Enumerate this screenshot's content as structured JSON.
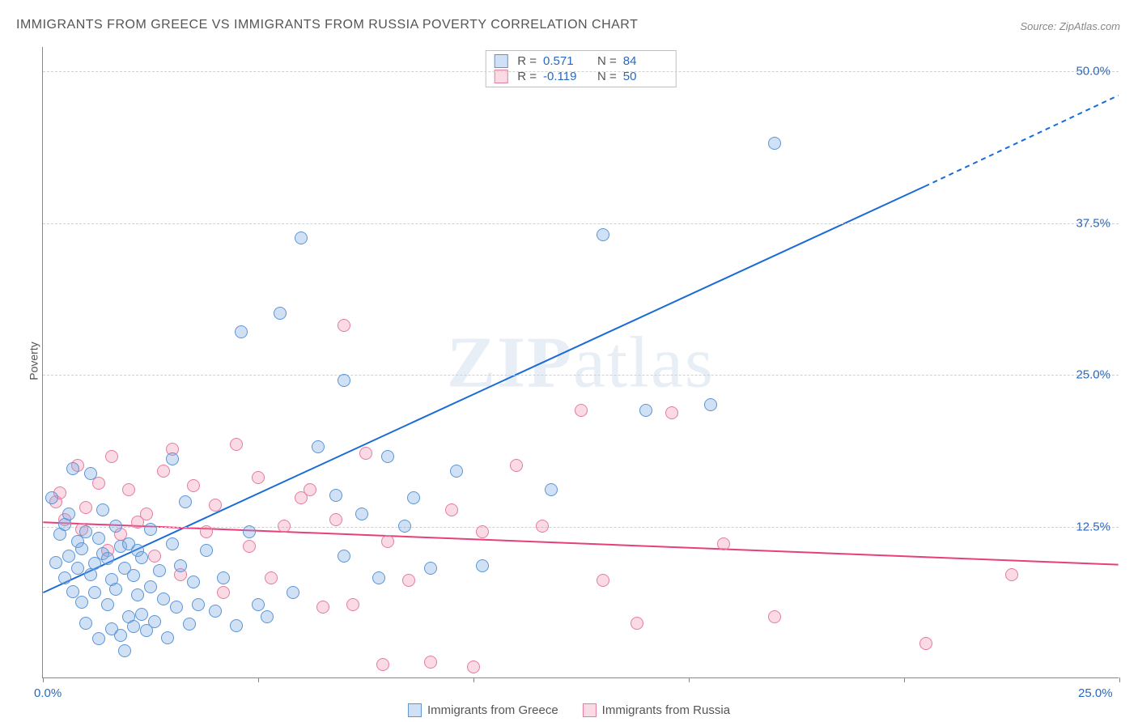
{
  "title": "IMMIGRANTS FROM GREECE VS IMMIGRANTS FROM RUSSIA POVERTY CORRELATION CHART",
  "source": "Source: ZipAtlas.com",
  "ylabel": "Poverty",
  "watermark_bold": "ZIP",
  "watermark_rest": "atlas",
  "chart": {
    "type": "scatter-correlation",
    "xlim": [
      0,
      25
    ],
    "ylim": [
      0,
      52
    ],
    "xtick_positions": [
      0,
      5,
      10,
      15,
      20,
      25
    ],
    "xtick_labels": [
      "0.0%",
      "",
      "",
      "",
      "",
      "25.0%"
    ],
    "ytick_positions": [
      12.5,
      25.0,
      37.5,
      50.0
    ],
    "ytick_labels": [
      "12.5%",
      "25.0%",
      "37.5%",
      "50.0%"
    ],
    "grid_color": "#d0d0d0",
    "background": "#ffffff",
    "axis_color": "#888888",
    "tick_label_color": "#2968c0",
    "label_color": "#555555",
    "title_fontsize": 16,
    "label_fontsize": 14,
    "tick_fontsize": 15
  },
  "series": {
    "greece": {
      "label": "Immigrants from Greece",
      "color_fill": "rgba(120,170,230,0.35)",
      "color_stroke": "#5b95d6",
      "line_color": "#1a6bd6",
      "line_width": 2,
      "marker_radius": 8,
      "R": "0.571",
      "N": "84",
      "trend": {
        "x1": 0,
        "y1": 7.0,
        "x2": 20.5,
        "y2": 40.5,
        "x2_dash": 25,
        "y2_dash": 48.0
      },
      "points": [
        [
          0.2,
          14.8
        ],
        [
          0.3,
          9.5
        ],
        [
          0.4,
          11.8
        ],
        [
          0.5,
          12.6
        ],
        [
          0.5,
          8.2
        ],
        [
          0.6,
          10.0
        ],
        [
          0.6,
          13.5
        ],
        [
          0.7,
          7.1
        ],
        [
          0.7,
          17.2
        ],
        [
          0.8,
          9.0
        ],
        [
          0.8,
          11.2
        ],
        [
          0.9,
          10.6
        ],
        [
          0.9,
          6.2
        ],
        [
          1.0,
          4.5
        ],
        [
          1.0,
          12.0
        ],
        [
          1.1,
          8.5
        ],
        [
          1.1,
          16.8
        ],
        [
          1.2,
          9.4
        ],
        [
          1.2,
          7.0
        ],
        [
          1.3,
          11.5
        ],
        [
          1.3,
          3.2
        ],
        [
          1.4,
          10.2
        ],
        [
          1.4,
          13.8
        ],
        [
          1.5,
          6.0
        ],
        [
          1.5,
          9.8
        ],
        [
          1.6,
          8.1
        ],
        [
          1.6,
          4.0
        ],
        [
          1.7,
          12.5
        ],
        [
          1.7,
          7.3
        ],
        [
          1.8,
          3.5
        ],
        [
          1.8,
          10.8
        ],
        [
          1.9,
          2.2
        ],
        [
          1.9,
          9.0
        ],
        [
          2.0,
          11.0
        ],
        [
          2.0,
          5.0
        ],
        [
          2.1,
          8.4
        ],
        [
          2.1,
          4.2
        ],
        [
          2.2,
          10.5
        ],
        [
          2.2,
          6.8
        ],
        [
          2.3,
          5.2
        ],
        [
          2.3,
          9.9
        ],
        [
          2.4,
          3.9
        ],
        [
          2.5,
          12.2
        ],
        [
          2.5,
          7.5
        ],
        [
          2.6,
          4.6
        ],
        [
          2.7,
          8.8
        ],
        [
          2.8,
          6.5
        ],
        [
          2.9,
          3.3
        ],
        [
          3.0,
          18.0
        ],
        [
          3.0,
          11.0
        ],
        [
          3.1,
          5.8
        ],
        [
          3.2,
          9.2
        ],
        [
          3.3,
          14.5
        ],
        [
          3.4,
          4.4
        ],
        [
          3.5,
          7.9
        ],
        [
          3.6,
          6.0
        ],
        [
          3.8,
          10.5
        ],
        [
          4.0,
          5.5
        ],
        [
          4.2,
          8.2
        ],
        [
          4.5,
          4.3
        ],
        [
          4.6,
          28.5
        ],
        [
          4.8,
          12.0
        ],
        [
          5.0,
          6.0
        ],
        [
          5.2,
          5.0
        ],
        [
          5.5,
          30.0
        ],
        [
          5.8,
          7.0
        ],
        [
          6.0,
          36.2
        ],
        [
          6.4,
          19.0
        ],
        [
          6.8,
          15.0
        ],
        [
          7.0,
          10.0
        ],
        [
          7.0,
          24.5
        ],
        [
          7.4,
          13.5
        ],
        [
          7.8,
          8.2
        ],
        [
          8.0,
          18.2
        ],
        [
          8.4,
          12.5
        ],
        [
          8.6,
          14.8
        ],
        [
          9.0,
          9.0
        ],
        [
          9.6,
          17.0
        ],
        [
          10.2,
          9.2
        ],
        [
          11.8,
          15.5
        ],
        [
          17.0,
          44.0
        ],
        [
          14.0,
          22.0
        ],
        [
          15.5,
          22.5
        ],
        [
          13.0,
          36.5
        ]
      ]
    },
    "russia": {
      "label": "Immigrants from Russia",
      "color_fill": "rgba(240,140,170,0.32)",
      "color_stroke": "#e77ba0",
      "line_color": "#e73f7a",
      "line_width": 2,
      "marker_radius": 8,
      "R": "-0.119",
      "N": "50",
      "trend": {
        "x1": 0,
        "y1": 12.8,
        "x2": 25,
        "y2": 9.3
      },
      "points": [
        [
          0.3,
          14.5
        ],
        [
          0.4,
          15.2
        ],
        [
          0.5,
          13.0
        ],
        [
          0.8,
          17.5
        ],
        [
          0.9,
          12.2
        ],
        [
          1.0,
          14.0
        ],
        [
          1.3,
          16.0
        ],
        [
          1.5,
          10.5
        ],
        [
          1.6,
          18.2
        ],
        [
          1.8,
          11.8
        ],
        [
          2.0,
          15.5
        ],
        [
          2.2,
          12.8
        ],
        [
          2.4,
          13.5
        ],
        [
          2.6,
          10.0
        ],
        [
          2.8,
          17.0
        ],
        [
          3.0,
          18.8
        ],
        [
          3.2,
          8.5
        ],
        [
          3.5,
          15.8
        ],
        [
          3.8,
          12.0
        ],
        [
          4.0,
          14.2
        ],
        [
          4.2,
          7.0
        ],
        [
          4.5,
          19.2
        ],
        [
          4.8,
          10.8
        ],
        [
          5.0,
          16.5
        ],
        [
          5.3,
          8.2
        ],
        [
          5.6,
          12.5
        ],
        [
          6.0,
          14.8
        ],
        [
          6.2,
          15.5
        ],
        [
          6.5,
          5.8
        ],
        [
          6.8,
          13.0
        ],
        [
          7.0,
          29.0
        ],
        [
          7.2,
          6.0
        ],
        [
          7.5,
          18.5
        ],
        [
          7.9,
          1.1
        ],
        [
          8.0,
          11.2
        ],
        [
          8.5,
          8.0
        ],
        [
          9.0,
          1.3
        ],
        [
          9.5,
          13.8
        ],
        [
          10.0,
          0.9
        ],
        [
          10.2,
          12.0
        ],
        [
          11.0,
          17.5
        ],
        [
          11.6,
          12.5
        ],
        [
          12.5,
          22.0
        ],
        [
          13.0,
          8.0
        ],
        [
          13.8,
          4.5
        ],
        [
          14.6,
          21.8
        ],
        [
          15.8,
          11.0
        ],
        [
          17.0,
          5.0
        ],
        [
          20.5,
          2.8
        ],
        [
          22.5,
          8.5
        ]
      ]
    }
  },
  "stats_box": {
    "r_label": "R  =",
    "n_label": "N  ="
  },
  "legend": {
    "greece": "Immigrants from Greece",
    "russia": "Immigrants from Russia"
  }
}
